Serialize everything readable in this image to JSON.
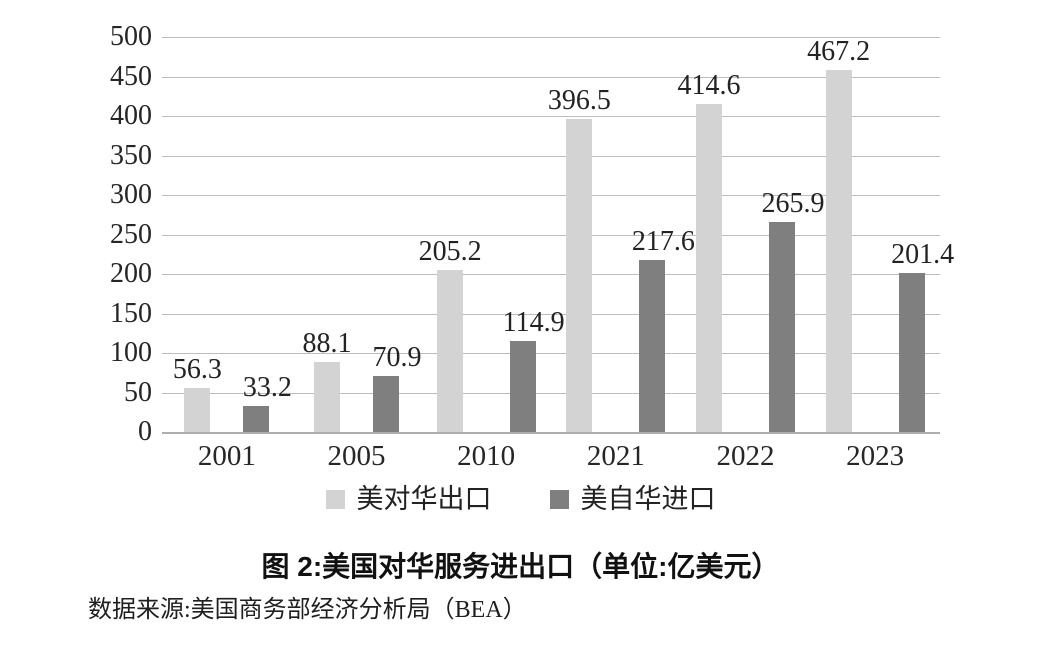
{
  "chart_data": {
    "type": "bar",
    "title": "图 2:美国对华服务进出口（单位:亿美元）",
    "source": "数据来源:美国商务部经济分析局（BEA）",
    "categories": [
      "2001",
      "2005",
      "2010",
      "2021",
      "2022",
      "2023"
    ],
    "series": [
      {
        "name": "美对华出口",
        "color": "#d3d3d3",
        "values": [
          56.3,
          88.1,
          205.2,
          396.5,
          414.6,
          467.2
        ]
      },
      {
        "name": "美自华进口",
        "color": "#7f7f7f",
        "values": [
          33.2,
          70.9,
          114.9,
          217.6,
          265.9,
          201.4
        ]
      }
    ],
    "ylim": [
      0,
      500
    ],
    "yticks": [
      0,
      50,
      100,
      150,
      200,
      250,
      300,
      350,
      400,
      450,
      500
    ],
    "grid": true,
    "legend_position": "bottom",
    "colors": {
      "grid_line": "#bdbdbd",
      "axis_line": "#aeaeae",
      "text": "#1c1c1c"
    }
  }
}
